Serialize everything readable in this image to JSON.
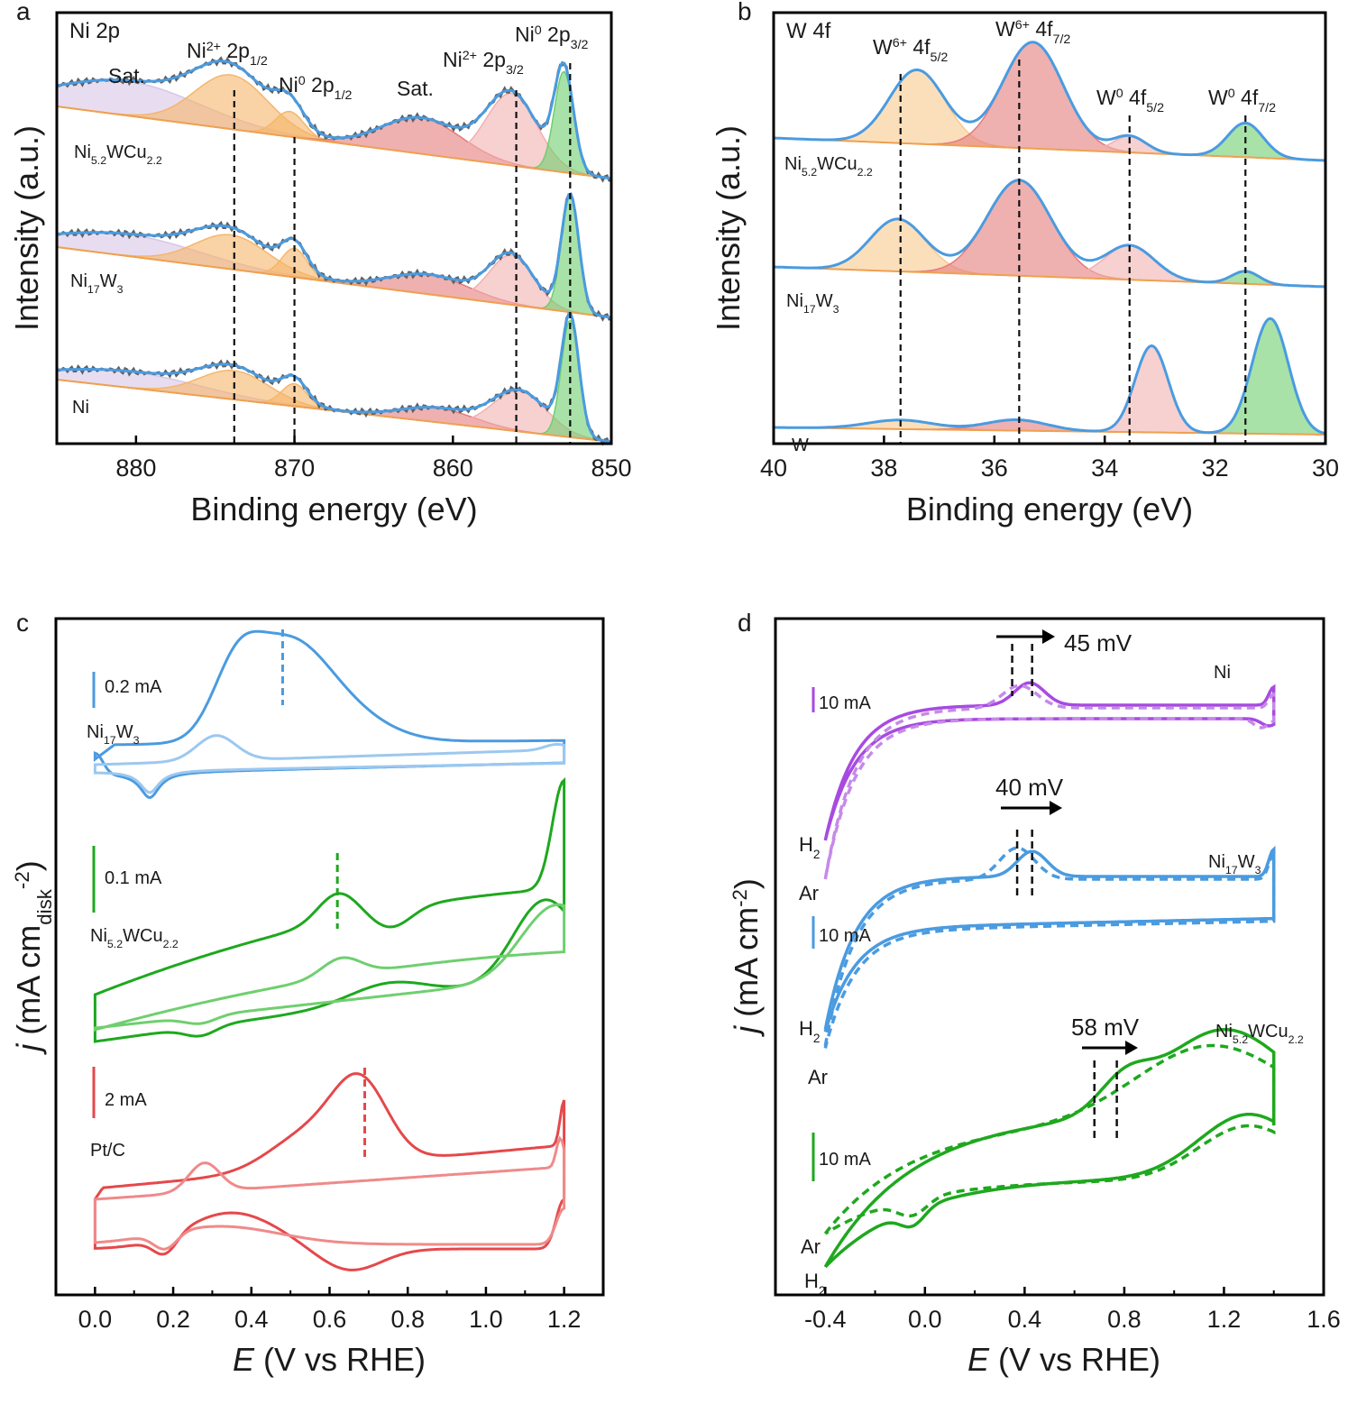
{
  "colors": {
    "blue": "#4a9be0",
    "lightblue": "#9cc8ef",
    "green": "#1ea81e",
    "lightgreen": "#6fcf6f",
    "red": "#e5484b",
    "lightred": "#ef8a8a",
    "purple": "#a84ae0",
    "lightpurple": "#c58ae9",
    "orange": "#f5b66a",
    "fillred": "#e57b7b",
    "fillgreen": "#6ecf6e",
    "fillpurple": "#d9c6e6",
    "fillpink": "#f2b0b0",
    "gray": "#606060"
  },
  "chart_data": [
    {
      "panel": "a",
      "type": "line",
      "title": "Ni 2p",
      "xlabel": "Binding energy (eV)",
      "ylabel": "Intensity (a.u.)",
      "xlim": [
        885,
        850
      ],
      "x_ticks": [
        "880",
        "870",
        "860",
        "850"
      ],
      "reversed_x": true,
      "series": [
        {
          "name": "Ni5.2WCu2.2",
          "label_main": "Ni",
          "label_sub1": "5.2",
          "label_mid": "WCu",
          "label_sub2": "2.2",
          "peaks": [
            {
              "label": "Sat.",
              "center": 880.5
            },
            {
              "label": "Ni2+ 2p1/2",
              "center": 874.0
            },
            {
              "label": "Ni0 2p1/2",
              "center": 870.4
            },
            {
              "label": "Sat.",
              "center": 862.0
            },
            {
              "label": "Ni2+ 2p3/2",
              "center": 856.3
            },
            {
              "label": "Ni0 2p3/2",
              "center": 853.0
            }
          ]
        },
        {
          "name": "Ni17W3",
          "label_main": "Ni",
          "label_sub1": "17",
          "label_mid": "W",
          "label_sub2": "3"
        },
        {
          "name": "Ni",
          "label_main": "Ni"
        }
      ],
      "peak_labels": [
        {
          "text": "Sat."
        },
        {
          "base": "Ni",
          "sup": "2+",
          "main": " 2p",
          "sub": "1/2"
        },
        {
          "base": "Ni",
          "sup": "0",
          "main": " 2p",
          "sub": "1/2"
        },
        {
          "text": "Sat."
        },
        {
          "base": "Ni",
          "sup": "2+",
          "main": " 2p",
          "sub": "3/2"
        },
        {
          "base": "Ni",
          "sup": "0",
          "main": " 2p",
          "sub": "3/2"
        }
      ],
      "reference_lines": [
        873.8,
        870.0,
        856.0,
        852.6
      ]
    },
    {
      "panel": "b",
      "type": "line",
      "title": "W 4f",
      "xlabel": "Binding energy (eV)",
      "ylabel": "Intensity (a.u.)",
      "xlim": [
        40,
        30
      ],
      "x_ticks": [
        "40",
        "38",
        "36",
        "34",
        "32",
        "30"
      ],
      "reversed_x": true,
      "series": [
        {
          "name": "Ni5.2WCu2.2",
          "label_main": "Ni",
          "label_sub1": "5.2",
          "label_mid": "WCu",
          "label_sub2": "2.2"
        },
        {
          "name": "Ni17W3",
          "label_main": "Ni",
          "label_sub1": "17",
          "label_mid": "W",
          "label_sub2": "3"
        },
        {
          "name": "W",
          "label_main": "W"
        }
      ],
      "peak_labels": [
        {
          "base": "W",
          "sup": "6+",
          "main": " 4f",
          "sub": "5/2"
        },
        {
          "base": "W",
          "sup": "6+",
          "main": " 4f",
          "sub": "7/2"
        },
        {
          "base": "W",
          "sup": "0",
          "main": " 4f",
          "sub": "5/2"
        },
        {
          "base": "W",
          "sup": "0",
          "main": " 4f",
          "sub": "7/2"
        }
      ],
      "reference_lines": [
        37.7,
        35.55,
        33.55,
        31.45
      ]
    },
    {
      "panel": "c",
      "type": "line",
      "xlabel_italic": "E",
      "xlabel_rest": " (V vs RHE)",
      "ylabel_italic": "j",
      "ylabel_rest": " (mA cm",
      "ylabel_sub": "disk",
      "ylabel_sup": "-2",
      "ylabel_close": ")",
      "xlim": [
        -0.1,
        1.3
      ],
      "x_ticks": [
        "0.0",
        "0.2",
        "0.4",
        "0.6",
        "0.8",
        "1.0",
        "1.2"
      ],
      "series": [
        {
          "name": "Ni17W3",
          "label_main": "Ni",
          "label_sub1": "17",
          "label_mid": "W",
          "label_sub2": "3",
          "scale_bar": "0.2 mA",
          "peak_E": 0.48
        },
        {
          "name": "Ni5.2WCu2.2",
          "label_main": "Ni",
          "label_sub1": "5.2",
          "label_mid": "WCu",
          "label_sub2": "2.2",
          "scale_bar": "0.1 mA",
          "peak_E": 0.62
        },
        {
          "name": "Pt/C",
          "label_main": "Pt/C",
          "scale_bar": "2 mA",
          "peak_E": 0.69
        }
      ]
    },
    {
      "panel": "d",
      "type": "line",
      "xlabel_italic": "E",
      "xlabel_rest": " (V vs RHE)",
      "ylabel_italic": "j",
      "ylabel_rest": " (mA cm",
      "ylabel_sup": "-2",
      "ylabel_close": ")",
      "xlim": [
        -0.6,
        1.6
      ],
      "x_ticks": [
        "-0.4",
        "0.0",
        "0.4",
        "0.8",
        "1.2",
        "1.6"
      ],
      "series": [
        {
          "name": "Ni",
          "label_main": "Ni",
          "scale_bar": "10 mA",
          "shift": "45 mV",
          "atmospheres": [
            "H",
            "2",
            "Ar"
          ]
        },
        {
          "name": "Ni17W3",
          "label_main": "Ni",
          "label_sub1": "17",
          "label_mid": "W",
          "label_sub2": "3",
          "scale_bar": "10 mA",
          "shift": "40 mV",
          "atmospheres": [
            "H",
            "2",
            "Ar"
          ]
        },
        {
          "name": "Ni5.2WCu2.2",
          "label_main": "Ni",
          "label_sub1": "5.2",
          "label_mid": "WCu",
          "label_sub2": "2.2",
          "scale_bar": "10 mA",
          "shift": "58 mV",
          "atmospheres": [
            "Ar",
            "H",
            "2"
          ]
        }
      ]
    }
  ]
}
